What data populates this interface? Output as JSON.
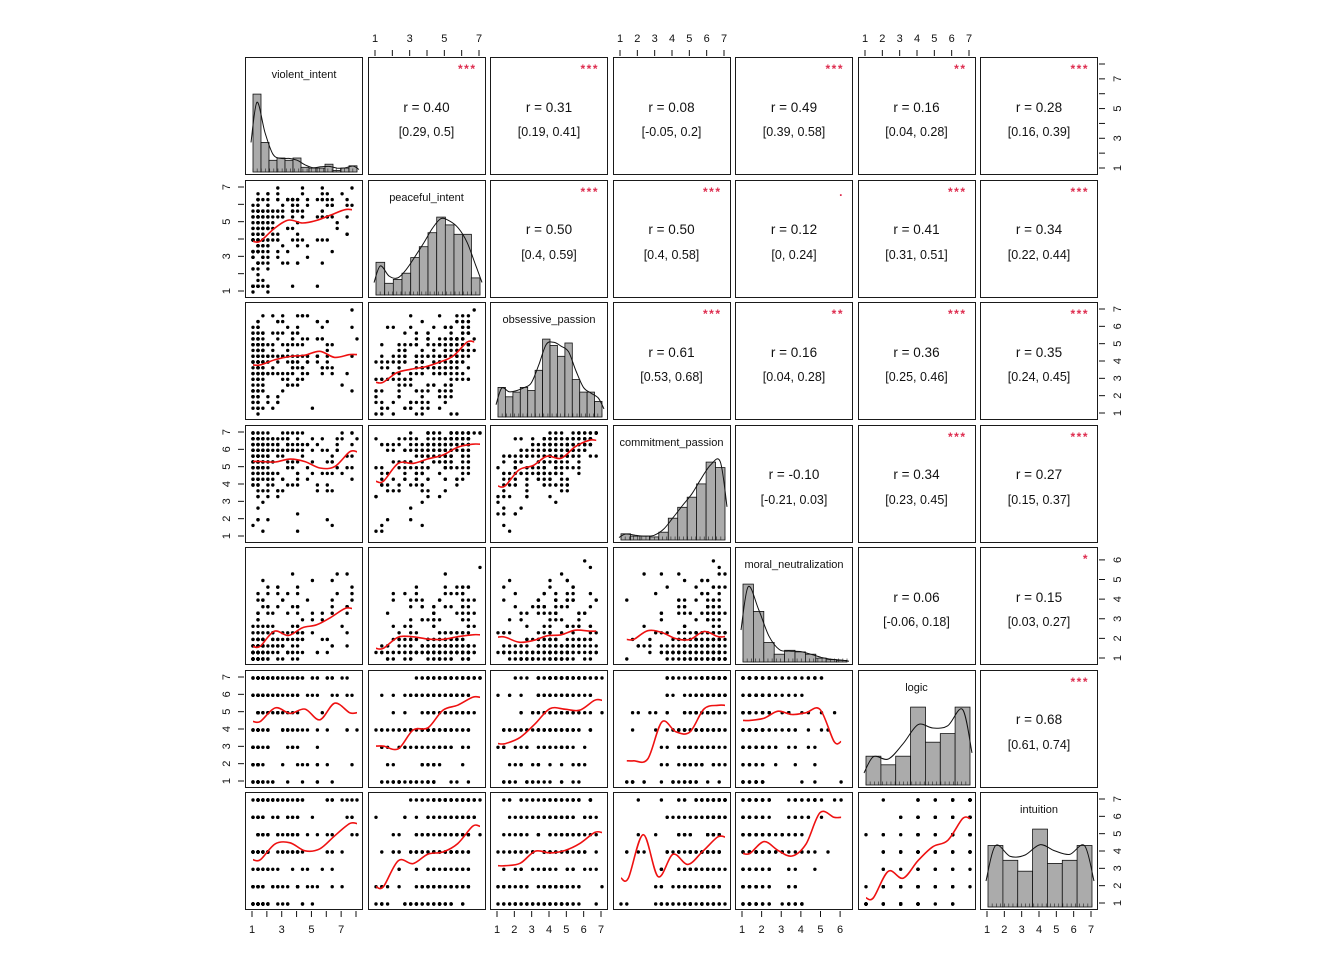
{
  "chart_data": {
    "type": "scatterplot-matrix",
    "description": "Pairs panel: histograms with density curves on the diagonal, scatter plots with red loess smooths in the lower triangle, Pearson correlations with 95% CIs and significance stars in the upper triangle.",
    "colors": {
      "background": "#ffffff",
      "point": "#000000",
      "smooth_line": "#ee1111",
      "hist_fill": "#ababab",
      "hist_edge": "#111111",
      "density_line": "#111111",
      "star": "#de2d4f",
      "panel_border": "#1a1a1a",
      "text": "#111111"
    },
    "variables": [
      {
        "name": "violent_intent",
        "min": 1,
        "max": 8,
        "ticks": [
          1,
          3,
          5,
          7
        ],
        "discrete": false,
        "hist": [
          1.0,
          0.38,
          0.15,
          0.18,
          0.15,
          0.18,
          0.06,
          0.05,
          0.05,
          0.1,
          0.02,
          0.05,
          0.08
        ]
      },
      {
        "name": "peaceful_intent",
        "min": 1,
        "max": 7,
        "ticks": [
          1,
          3,
          5,
          7
        ],
        "discrete": false,
        "hist": [
          0.42,
          0.15,
          0.2,
          0.28,
          0.48,
          0.62,
          0.8,
          1.0,
          0.9,
          0.78,
          0.78,
          0.22
        ]
      },
      {
        "name": "obsessive_passion",
        "min": 1,
        "max": 7,
        "ticks": [
          1,
          2,
          3,
          4,
          5,
          6,
          7
        ],
        "discrete": false,
        "hist": [
          0.38,
          0.26,
          0.32,
          0.38,
          0.34,
          0.6,
          1.0,
          0.92,
          0.78,
          0.95,
          0.48,
          0.32,
          0.32,
          0.2
        ]
      },
      {
        "name": "commitment_passion",
        "min": 1,
        "max": 7,
        "ticks": [
          1,
          2,
          3,
          4,
          5,
          6,
          7
        ],
        "discrete": false,
        "hist": [
          0.08,
          0.05,
          0.05,
          0.04,
          0.1,
          0.28,
          0.42,
          0.55,
          0.72,
          1.0,
          0.93
        ]
      },
      {
        "name": "moral_neutralization",
        "min": 1,
        "max": 6.3,
        "ticks": [
          1,
          2,
          3,
          4,
          5,
          6
        ],
        "discrete": false,
        "hist": [
          1.0,
          0.65,
          0.25,
          0.1,
          0.15,
          0.13,
          0.1,
          0.05,
          0.03,
          0.02
        ]
      },
      {
        "name": "logic",
        "min": 1,
        "max": 7,
        "ticks": [
          1,
          2,
          3,
          4,
          5,
          6,
          7
        ],
        "discrete": true,
        "hist": [
          0.37,
          0.26,
          0.37,
          1.0,
          0.55,
          0.66,
          1.0
        ]
      },
      {
        "name": "intuition",
        "min": 1,
        "max": 7,
        "ticks": [
          1,
          2,
          3,
          4,
          5,
          6,
          7
        ],
        "discrete": true,
        "hist": [
          0.79,
          0.6,
          0.46,
          1.0,
          0.56,
          0.6,
          0.79
        ]
      }
    ],
    "correlations": [
      {
        "row": 0,
        "col": 1,
        "pair": [
          "violent_intent",
          "peaceful_intent"
        ],
        "r": 0.4,
        "r_text": "r = 0.40",
        "ci_text": "[0.29, 0.5]",
        "stars": "***"
      },
      {
        "row": 0,
        "col": 2,
        "pair": [
          "violent_intent",
          "obsessive_passion"
        ],
        "r": 0.31,
        "r_text": "r = 0.31",
        "ci_text": "[0.19, 0.41]",
        "stars": "***"
      },
      {
        "row": 0,
        "col": 3,
        "pair": [
          "violent_intent",
          "commitment_passion"
        ],
        "r": 0.08,
        "r_text": "r = 0.08",
        "ci_text": "[-0.05, 0.2]",
        "stars": ""
      },
      {
        "row": 0,
        "col": 4,
        "pair": [
          "violent_intent",
          "moral_neutralization"
        ],
        "r": 0.49,
        "r_text": "r = 0.49",
        "ci_text": "[0.39, 0.58]",
        "stars": "***"
      },
      {
        "row": 0,
        "col": 5,
        "pair": [
          "violent_intent",
          "logic"
        ],
        "r": 0.16,
        "r_text": "r = 0.16",
        "ci_text": "[0.04, 0.28]",
        "stars": "**"
      },
      {
        "row": 0,
        "col": 6,
        "pair": [
          "violent_intent",
          "intuition"
        ],
        "r": 0.28,
        "r_text": "r = 0.28",
        "ci_text": "[0.16, 0.39]",
        "stars": "***"
      },
      {
        "row": 1,
        "col": 2,
        "pair": [
          "peaceful_intent",
          "obsessive_passion"
        ],
        "r": 0.5,
        "r_text": "r = 0.50",
        "ci_text": "[0.4, 0.59]",
        "stars": "***"
      },
      {
        "row": 1,
        "col": 3,
        "pair": [
          "peaceful_intent",
          "commitment_passion"
        ],
        "r": 0.5,
        "r_text": "r = 0.50",
        "ci_text": "[0.4, 0.58]",
        "stars": "***"
      },
      {
        "row": 1,
        "col": 4,
        "pair": [
          "peaceful_intent",
          "moral_neutralization"
        ],
        "r": 0.12,
        "r_text": "r = 0.12",
        "ci_text": "[0, 0.24]",
        "stars": "."
      },
      {
        "row": 1,
        "col": 5,
        "pair": [
          "peaceful_intent",
          "logic"
        ],
        "r": 0.41,
        "r_text": "r = 0.41",
        "ci_text": "[0.31, 0.51]",
        "stars": "***"
      },
      {
        "row": 1,
        "col": 6,
        "pair": [
          "peaceful_intent",
          "intuition"
        ],
        "r": 0.34,
        "r_text": "r = 0.34",
        "ci_text": "[0.22, 0.44]",
        "stars": "***"
      },
      {
        "row": 2,
        "col": 3,
        "pair": [
          "obsessive_passion",
          "commitment_passion"
        ],
        "r": 0.61,
        "r_text": "r = 0.61",
        "ci_text": "[0.53, 0.68]",
        "stars": "***"
      },
      {
        "row": 2,
        "col": 4,
        "pair": [
          "obsessive_passion",
          "moral_neutralization"
        ],
        "r": 0.16,
        "r_text": "r = 0.16",
        "ci_text": "[0.04, 0.28]",
        "stars": "**"
      },
      {
        "row": 2,
        "col": 5,
        "pair": [
          "obsessive_passion",
          "logic"
        ],
        "r": 0.36,
        "r_text": "r = 0.36",
        "ci_text": "[0.25, 0.46]",
        "stars": "***"
      },
      {
        "row": 2,
        "col": 6,
        "pair": [
          "obsessive_passion",
          "intuition"
        ],
        "r": 0.35,
        "r_text": "r = 0.35",
        "ci_text": "[0.24, 0.45]",
        "stars": "***"
      },
      {
        "row": 3,
        "col": 4,
        "pair": [
          "commitment_passion",
          "moral_neutralization"
        ],
        "r": -0.1,
        "r_text": "r = -0.10",
        "ci_text": "[-0.21, 0.03]",
        "stars": ""
      },
      {
        "row": 3,
        "col": 5,
        "pair": [
          "commitment_passion",
          "logic"
        ],
        "r": 0.34,
        "r_text": "r = 0.34",
        "ci_text": "[0.23, 0.45]",
        "stars": "***"
      },
      {
        "row": 3,
        "col": 6,
        "pair": [
          "commitment_passion",
          "intuition"
        ],
        "r": 0.27,
        "r_text": "r = 0.27",
        "ci_text": "[0.15, 0.37]",
        "stars": "***"
      },
      {
        "row": 4,
        "col": 5,
        "pair": [
          "moral_neutralization",
          "logic"
        ],
        "r": 0.06,
        "r_text": "r = 0.06",
        "ci_text": "[-0.06, 0.18]",
        "stars": ""
      },
      {
        "row": 4,
        "col": 6,
        "pair": [
          "moral_neutralization",
          "intuition"
        ],
        "r": 0.15,
        "r_text": "r = 0.15",
        "ci_text": "[0.03, 0.27]",
        "stars": "*"
      },
      {
        "row": 5,
        "col": 6,
        "pair": [
          "logic",
          "intuition"
        ],
        "r": 0.68,
        "r_text": "r = 0.68",
        "ci_text": "[0.61, 0.74]",
        "stars": "***"
      }
    ],
    "axes": {
      "top_label_columns": [
        1,
        3,
        5
      ],
      "bottom_label_columns": [
        0,
        2,
        4,
        6
      ],
      "left_label_rows": [
        1,
        3,
        5
      ],
      "right_label_rows": [
        0,
        2,
        4,
        6
      ]
    },
    "n_points_per_panel": 260
  }
}
